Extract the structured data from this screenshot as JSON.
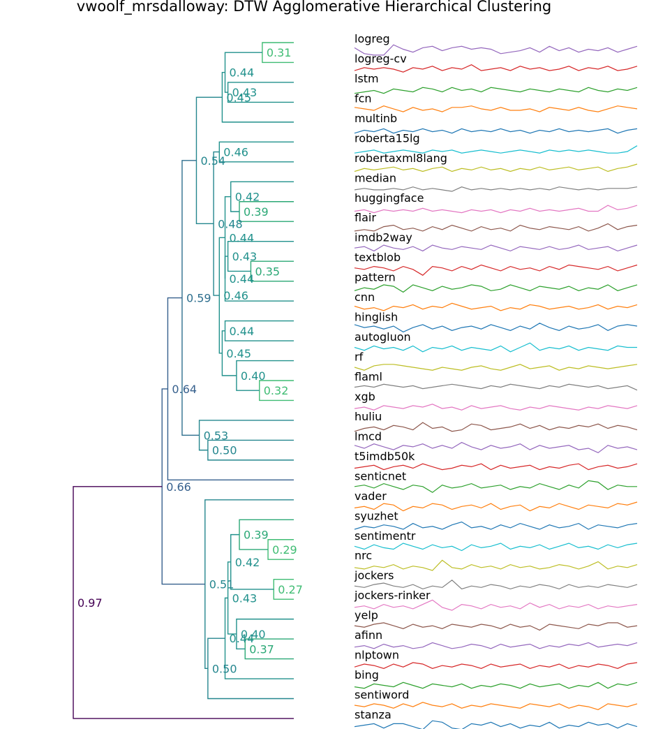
{
  "chart_data": {
    "type": "dendrogram",
    "title": "vwoolf_mrsdalloway: DTW Agglomerative Hierarchical Clustering",
    "leaves": [
      "logreg",
      "logreg-cv",
      "lstm",
      "fcn",
      "multinb",
      "roberta15lg",
      "robertaxml8lang",
      "median",
      "huggingface",
      "flair",
      "imdb2way",
      "textblob",
      "pattern",
      "cnn",
      "hinglish",
      "autogluon",
      "rf",
      "flaml",
      "xgb",
      "huliu",
      "lmcd",
      "t5imdb50k",
      "senticnet",
      "vader",
      "syuzhet",
      "sentimentr",
      "nrc",
      "jockers",
      "jockers-rinker",
      "yelp",
      "afinn",
      "nlptown",
      "bing",
      "sentiword",
      "stanza"
    ],
    "merges": [
      {
        "id": "m1",
        "children": [
          "logreg",
          "logreg-cv"
        ],
        "height": 0.31,
        "label": "0.31"
      },
      {
        "id": "m2",
        "children": [
          "lstm",
          "fcn"
        ],
        "height": 0.43,
        "label": "0.43"
      },
      {
        "id": "m3",
        "children": [
          "m1",
          "m2"
        ],
        "height": 0.44,
        "label": "0.44"
      },
      {
        "id": "m4",
        "children": [
          "m3",
          "multinb"
        ],
        "height": 0.45,
        "label": "0.45"
      },
      {
        "id": "m5",
        "children": [
          "roberta15lg",
          "robertaxml8lang"
        ],
        "height": 0.46,
        "label": "0.46"
      },
      {
        "id": "m6",
        "children": [
          "huggingface",
          "flair"
        ],
        "height": 0.39,
        "label": "0.39"
      },
      {
        "id": "m7",
        "children": [
          "median",
          "m6"
        ],
        "height": 0.42,
        "label": "0.42"
      },
      {
        "id": "m8",
        "children": [
          "textblob",
          "pattern"
        ],
        "height": 0.35,
        "label": "0.35"
      },
      {
        "id": "m9",
        "children": [
          "imdb2way",
          "m8"
        ],
        "height": 0.43,
        "label": "0.43"
      },
      {
        "id": "m10",
        "children": [
          "m9",
          "cnn"
        ],
        "height": 0.44,
        "label": "0.44"
      },
      {
        "id": "m11",
        "children": [
          "m7",
          "m10"
        ],
        "height": 0.44,
        "label": "0.44"
      },
      {
        "id": "m12",
        "children": [
          "hinglish",
          "autogluon"
        ],
        "height": 0.44,
        "label": "0.44"
      },
      {
        "id": "m13",
        "children": [
          "flaml",
          "xgb"
        ],
        "height": 0.32,
        "label": "0.32"
      },
      {
        "id": "m14",
        "children": [
          "rf",
          "m13"
        ],
        "height": 0.4,
        "label": "0.40"
      },
      {
        "id": "m15",
        "children": [
          "m12",
          "m14"
        ],
        "height": 0.45,
        "label": "0.45"
      },
      {
        "id": "m16",
        "children": [
          "m11",
          "m15"
        ],
        "height": 0.46,
        "label": "0.46"
      },
      {
        "id": "m17",
        "children": [
          "m5",
          "m16"
        ],
        "height": 0.48,
        "label": "0.48"
      },
      {
        "id": "m18",
        "children": [
          "m4",
          "m17"
        ],
        "height": 0.54,
        "label": "0.54"
      },
      {
        "id": "m19",
        "children": [
          "lmcd",
          "t5imdb50k"
        ],
        "height": 0.5,
        "label": "0.50"
      },
      {
        "id": "m20",
        "children": [
          "huliu",
          "m19"
        ],
        "height": 0.53,
        "label": "0.53"
      },
      {
        "id": "m21",
        "children": [
          "m18",
          "m20"
        ],
        "height": 0.59,
        "label": "0.59"
      },
      {
        "id": "m22",
        "children": [
          "m21",
          "senticnet"
        ],
        "height": 0.64,
        "label": "0.64"
      },
      {
        "id": "m23",
        "children": [
          "sentimentr",
          "nrc"
        ],
        "height": 0.29,
        "label": "0.29"
      },
      {
        "id": "m24",
        "children": [
          "syuzhet",
          "m23"
        ],
        "height": 0.39,
        "label": "0.39"
      },
      {
        "id": "m25",
        "children": [
          "jockers",
          "jockers-rinker"
        ],
        "height": 0.27,
        "label": "0.27"
      },
      {
        "id": "m26",
        "children": [
          "m24",
          "m25"
        ],
        "height": 0.42,
        "label": "0.42"
      },
      {
        "id": "m27",
        "children": [
          "afinn",
          "nlptown"
        ],
        "height": 0.37,
        "label": "0.37"
      },
      {
        "id": "m28",
        "children": [
          "yelp",
          "m27"
        ],
        "height": 0.4,
        "label": "0.40"
      },
      {
        "id": "m29",
        "children": [
          "m26",
          "m28"
        ],
        "height": 0.43,
        "label": "0.43"
      },
      {
        "id": "m30",
        "children": [
          "m29",
          "bing"
        ],
        "height": 0.44,
        "label": "0.44"
      },
      {
        "id": "m31",
        "children": [
          "m30",
          "sentiword"
        ],
        "height": 0.5,
        "label": "0.50"
      },
      {
        "id": "m32",
        "children": [
          "vader",
          "m31"
        ],
        "height": 0.51,
        "label": "0.51"
      },
      {
        "id": "m33",
        "children": [
          "m22",
          "m32"
        ],
        "height": 0.66,
        "label": "0.66"
      },
      {
        "id": "m34",
        "children": [
          "m33",
          "stanza"
        ],
        "height": 0.97,
        "label": "0.97"
      }
    ],
    "xlim": [
      0.2,
      1.0
    ],
    "series_colors": [
      "#9467bd",
      "#d62728",
      "#2ca02c",
      "#ff7f0e",
      "#1f77b4",
      "#17becf",
      "#bcbd22",
      "#7f7f7f",
      "#e377c2",
      "#8c564b"
    ],
    "sparklines": [
      [
        6,
        2,
        1,
        1,
        8,
        5,
        3,
        6,
        7,
        4,
        6,
        7,
        5,
        6,
        5,
        2,
        3,
        4,
        6,
        3,
        7,
        4,
        6,
        3,
        5,
        4,
        6,
        3,
        5,
        7
      ],
      [
        4,
        6,
        5,
        6,
        5,
        3,
        6,
        5,
        7,
        4,
        6,
        5,
        8,
        4,
        5,
        6,
        4,
        7,
        5,
        6,
        4,
        5,
        7,
        4,
        6,
        5,
        7,
        4,
        5,
        7
      ],
      [
        2,
        3,
        4,
        2,
        5,
        4,
        3,
        6,
        5,
        3,
        6,
        4,
        5,
        3,
        6,
        5,
        4,
        3,
        5,
        4,
        3,
        5,
        4,
        3,
        6,
        4,
        3,
        5,
        4,
        6
      ],
      [
        6,
        5,
        4,
        7,
        5,
        3,
        6,
        4,
        5,
        3,
        6,
        6,
        7,
        5,
        4,
        6,
        4,
        4,
        5,
        3,
        6,
        5,
        4,
        6,
        4,
        3,
        5,
        7,
        6,
        5
      ],
      [
        2,
        4,
        3,
        5,
        2,
        4,
        3,
        5,
        3,
        4,
        2,
        5,
        3,
        4,
        3,
        5,
        3,
        4,
        2,
        4,
        3,
        5,
        3,
        4,
        3,
        4,
        5,
        2,
        4,
        5
      ],
      [
        2,
        3,
        4,
        2,
        3,
        4,
        3,
        2,
        4,
        3,
        4,
        2,
        3,
        4,
        3,
        2,
        3,
        4,
        3,
        2,
        4,
        3,
        4,
        3,
        4,
        3,
        2,
        2,
        3,
        7
      ],
      [
        3,
        5,
        4,
        5,
        6,
        4,
        5,
        3,
        5,
        6,
        3,
        5,
        4,
        6,
        4,
        5,
        3,
        5,
        4,
        6,
        4,
        5,
        6,
        4,
        5,
        6,
        3,
        5,
        6,
        8
      ],
      [
        4,
        5,
        4,
        4,
        5,
        4,
        6,
        4,
        5,
        4,
        3,
        6,
        4,
        5,
        4,
        5,
        4,
        5,
        4,
        5,
        4,
        6,
        5,
        4,
        5,
        4,
        5,
        5,
        5,
        6
      ],
      [
        3,
        4,
        2,
        4,
        3,
        4,
        3,
        5,
        3,
        4,
        3,
        2,
        4,
        3,
        4,
        2,
        4,
        3,
        5,
        3,
        4,
        3,
        4,
        5,
        3,
        3,
        7,
        4,
        5,
        7
      ],
      [
        3,
        4,
        3,
        6,
        7,
        4,
        5,
        3,
        6,
        4,
        7,
        5,
        3,
        6,
        4,
        5,
        3,
        7,
        5,
        4,
        6,
        5,
        4,
        6,
        3,
        5,
        8,
        4,
        6,
        7
      ],
      [
        5,
        6,
        3,
        7,
        5,
        4,
        6,
        3,
        7,
        5,
        4,
        6,
        5,
        4,
        7,
        5,
        3,
        6,
        5,
        4,
        6,
        4,
        5,
        7,
        4,
        5,
        6,
        3,
        5,
        7
      ],
      [
        5,
        4,
        6,
        5,
        3,
        6,
        4,
        0,
        6,
        5,
        3,
        6,
        4,
        7,
        5,
        3,
        6,
        4,
        5,
        3,
        6,
        4,
        7,
        6,
        5,
        4,
        6,
        3,
        5,
        7
      ],
      [
        3,
        5,
        4,
        7,
        6,
        2,
        7,
        5,
        3,
        6,
        4,
        5,
        7,
        6,
        3,
        4,
        7,
        5,
        3,
        6,
        5,
        4,
        6,
        3,
        5,
        4,
        7,
        3,
        5,
        7
      ],
      [
        6,
        4,
        5,
        3,
        6,
        5,
        7,
        4,
        6,
        5,
        8,
        6,
        4,
        5,
        6,
        3,
        5,
        4,
        7,
        6,
        4,
        5,
        6,
        4,
        5,
        7,
        4,
        6,
        5,
        7
      ],
      [
        7,
        5,
        6,
        4,
        6,
        2,
        5,
        7,
        4,
        6,
        3,
        5,
        6,
        4,
        7,
        5,
        3,
        6,
        4,
        8,
        5,
        3,
        6,
        4,
        5,
        7,
        3,
        6,
        7,
        6
      ],
      [
        5,
        3,
        6,
        4,
        5,
        3,
        6,
        2,
        5,
        4,
        6,
        3,
        5,
        4,
        3,
        6,
        2,
        5,
        8,
        3,
        5,
        4,
        6,
        3,
        5,
        4,
        3,
        6,
        5,
        5
      ],
      [
        5,
        3,
        6,
        7,
        7,
        6,
        5,
        4,
        3,
        5,
        4,
        3,
        5,
        6,
        4,
        3,
        5,
        7,
        4,
        5,
        6,
        3,
        5,
        4,
        6,
        5,
        4,
        5,
        6,
        7
      ],
      [
        5,
        6,
        5,
        7,
        6,
        5,
        6,
        4,
        5,
        6,
        7,
        6,
        5,
        4,
        6,
        5,
        7,
        6,
        5,
        4,
        6,
        5,
        7,
        6,
        5,
        6,
        4,
        5,
        6,
        3
      ],
      [
        4,
        5,
        3,
        6,
        5,
        4,
        6,
        5,
        7,
        4,
        5,
        3,
        6,
        4,
        5,
        6,
        4,
        3,
        5,
        4,
        6,
        5,
        4,
        3,
        5,
        4,
        6,
        5,
        4,
        6
      ],
      [
        2,
        4,
        5,
        3,
        6,
        5,
        3,
        8,
        4,
        5,
        2,
        3,
        7,
        6,
        3,
        4,
        5,
        7,
        4,
        6,
        3,
        5,
        4,
        6,
        5,
        7,
        4,
        6,
        5,
        3
      ],
      [
        6,
        4,
        7,
        5,
        3,
        6,
        5,
        7,
        4,
        6,
        4,
        8,
        5,
        3,
        6,
        4,
        5,
        7,
        3,
        6,
        4,
        5,
        6,
        3,
        4,
        1,
        6,
        4,
        5,
        3
      ],
      [
        4,
        5,
        6,
        3,
        5,
        6,
        4,
        7,
        5,
        3,
        4,
        6,
        5,
        7,
        3,
        6,
        4,
        5,
        6,
        3,
        5,
        4,
        6,
        7,
        3,
        5,
        6,
        4,
        5,
        7
      ],
      [
        5,
        6,
        4,
        7,
        5,
        3,
        6,
        5,
        1,
        6,
        4,
        5,
        7,
        4,
        5,
        6,
        3,
        5,
        4,
        7,
        5,
        3,
        6,
        4,
        9,
        8,
        3,
        6,
        5,
        5
      ],
      [
        4,
        5,
        3,
        7,
        6,
        2,
        5,
        4,
        7,
        6,
        3,
        5,
        6,
        4,
        7,
        3,
        5,
        6,
        2,
        5,
        4,
        7,
        5,
        3,
        6,
        5,
        4,
        7,
        6,
        8
      ],
      [
        3,
        5,
        4,
        6,
        5,
        3,
        7,
        4,
        5,
        3,
        6,
        8,
        4,
        5,
        3,
        6,
        4,
        7,
        5,
        3,
        6,
        4,
        5,
        7,
        3,
        6,
        5,
        4,
        6,
        7
      ],
      [
        5,
        3,
        6,
        4,
        3,
        7,
        5,
        3,
        6,
        4,
        5,
        2,
        6,
        4,
        5,
        7,
        3,
        5,
        4,
        6,
        3,
        5,
        7,
        4,
        5,
        3,
        6,
        4,
        6,
        7
      ],
      [
        4,
        3,
        5,
        4,
        6,
        3,
        5,
        4,
        2,
        9,
        4,
        3,
        6,
        4,
        5,
        3,
        6,
        4,
        5,
        3,
        4,
        6,
        5,
        3,
        5,
        8,
        3,
        5,
        4,
        6
      ],
      [
        5,
        4,
        6,
        7,
        5,
        4,
        6,
        3,
        5,
        4,
        9,
        3,
        5,
        4,
        6,
        5,
        3,
        5,
        4,
        6,
        5,
        3,
        6,
        4,
        5,
        4,
        6,
        5,
        4,
        6
      ],
      [
        4,
        5,
        3,
        6,
        4,
        5,
        3,
        6,
        9,
        4,
        2,
        6,
        5,
        3,
        6,
        4,
        5,
        3,
        7,
        4,
        6,
        3,
        5,
        4,
        6,
        3,
        5,
        4,
        5,
        6
      ],
      [
        5,
        4,
        6,
        7,
        5,
        3,
        6,
        4,
        5,
        3,
        6,
        5,
        4,
        6,
        5,
        3,
        6,
        4,
        5,
        2,
        6,
        5,
        4,
        3,
        6,
        5,
        7,
        7,
        4,
        5
      ],
      [
        4,
        5,
        3,
        6,
        4,
        5,
        3,
        4,
        7,
        5,
        3,
        4,
        6,
        5,
        3,
        6,
        4,
        5,
        6,
        3,
        5,
        4,
        6,
        5,
        7,
        4,
        5,
        6,
        5,
        7
      ],
      [
        4,
        6,
        5,
        3,
        6,
        4,
        7,
        6,
        3,
        5,
        4,
        6,
        5,
        3,
        6,
        4,
        5,
        6,
        3,
        5,
        4,
        6,
        3,
        5,
        4,
        6,
        5,
        3,
        6,
        7
      ],
      [
        4,
        3,
        6,
        5,
        4,
        7,
        5,
        3,
        6,
        5,
        4,
        6,
        3,
        5,
        4,
        6,
        5,
        3,
        6,
        4,
        5,
        6,
        3,
        5,
        4,
        7,
        3,
        6,
        5,
        7
      ],
      [
        5,
        4,
        6,
        5,
        3,
        6,
        4,
        7,
        5,
        4,
        6,
        3,
        5,
        4,
        6,
        5,
        4,
        3,
        6,
        5,
        4,
        6,
        3,
        5,
        4,
        2,
        6,
        5,
        4,
        6
      ],
      [
        4,
        5,
        6,
        3,
        6,
        6,
        4,
        2,
        8,
        7,
        3,
        2,
        6,
        5,
        7,
        4,
        6,
        3,
        5,
        4,
        7,
        3,
        5,
        4,
        7,
        5,
        6,
        3,
        6,
        4
      ]
    ]
  }
}
